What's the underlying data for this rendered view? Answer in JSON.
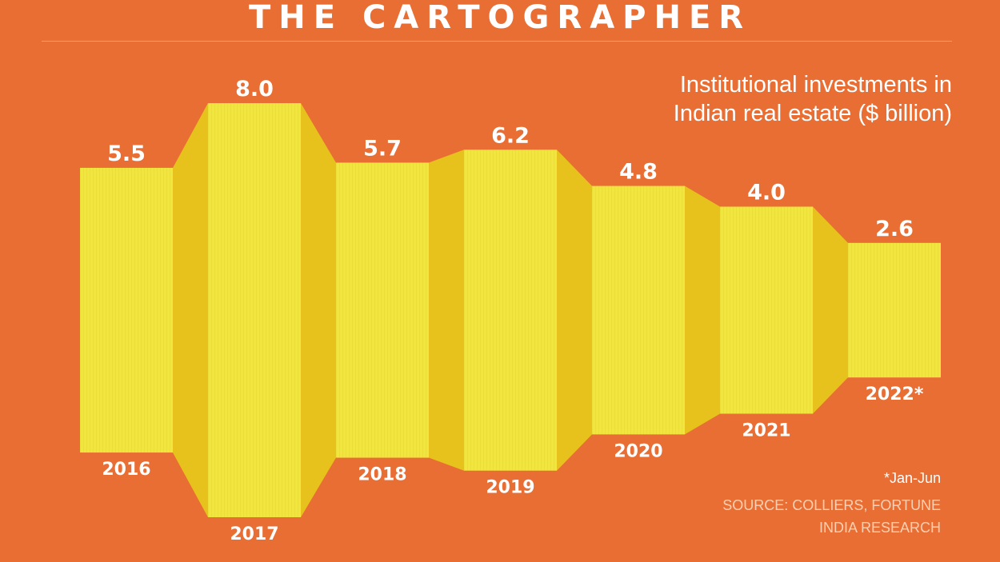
{
  "header": {
    "title": "THE CARTOGRAPHER"
  },
  "chart_data": {
    "type": "bar",
    "title": "Institutional investments in Indian real estate ($ billion)",
    "categories": [
      "2016",
      "2017",
      "2018",
      "2019",
      "2020",
      "2021",
      "2022*"
    ],
    "values": [
      5.5,
      8.0,
      5.7,
      6.2,
      4.8,
      4.0,
      2.6
    ],
    "value_labels": [
      "5.5",
      "8.0",
      "5.7",
      "6.2",
      "4.8",
      "4.0",
      "2.6"
    ],
    "colors": {
      "bar": "#F1E53F",
      "connector": "#E7C21D",
      "background": "#E96E34"
    }
  },
  "footnote": "*Jan-Jun",
  "source": "SOURCE: COLLIERS, FORTUNE INDIA RESEARCH"
}
